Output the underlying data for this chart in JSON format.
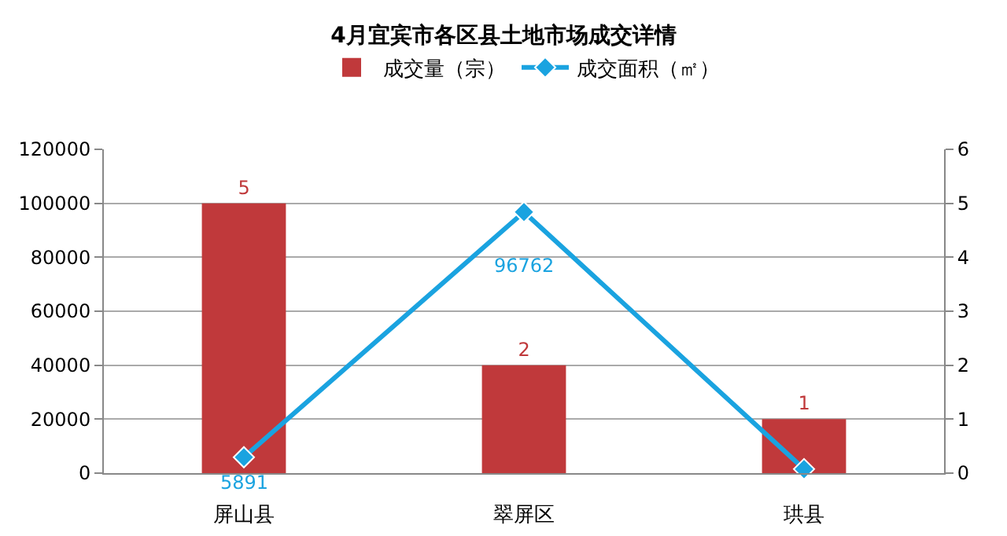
{
  "chart_data": {
    "type": "bar",
    "title": "4月宜宾市各区县土地市场成交详情",
    "categories": [
      "屏山县",
      "翠屏区",
      "珙县"
    ],
    "series": [
      {
        "name": "成交量（宗）",
        "axis": "y2",
        "color": "#c0393b",
        "values": [
          5,
          2,
          1
        ],
        "value_labels": [
          "5",
          "2",
          "1"
        ]
      },
      {
        "name": "成交面积（㎡）",
        "type": "line",
        "axis": "y",
        "color": "#1aa3e0",
        "values": [
          5891,
          96762,
          1500
        ],
        "value_labels": [
          "5891",
          "96762",
          null
        ],
        "marker": "diamond"
      }
    ],
    "ylim": [
      0,
      120000
    ],
    "yticks": [
      0,
      20000,
      40000,
      60000,
      80000,
      100000,
      120000
    ],
    "y2lim": [
      0,
      6
    ],
    "y2ticks": [
      0,
      1,
      2,
      3,
      4,
      5,
      6
    ],
    "grid": "y",
    "legend": "top"
  }
}
